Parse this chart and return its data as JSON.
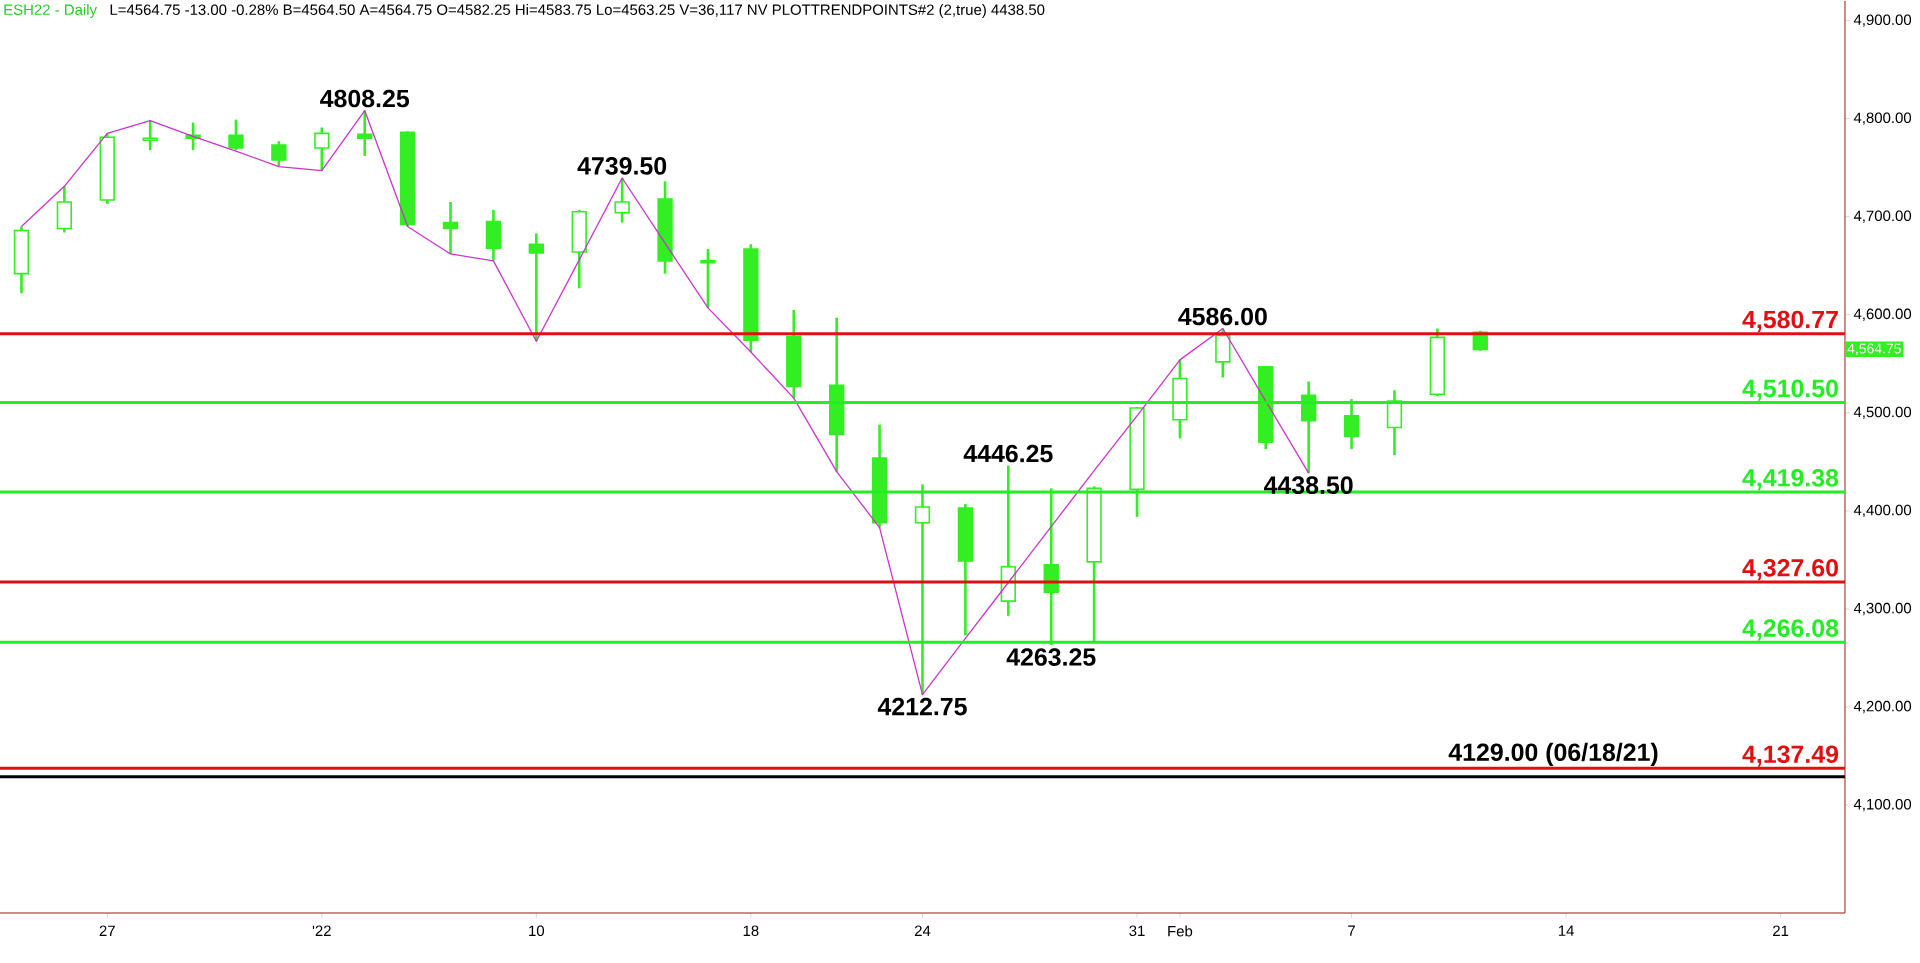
{
  "chart_data": {
    "type": "candlestick",
    "title": "ESH22 - Daily",
    "subtitle": "L=4564.75 -13.00 -0.28%  B=4564.50  A=4564.75  O=4582.25  Hi=4583.75  Lo=4563.25  V=36,117  NV  PLOTTRENDPOINTS#2 (2,true)  4438.50",
    "color": "#33ee22",
    "categories": [
      null,
      null,
      "27",
      null,
      null,
      null,
      null,
      "'22",
      null,
      null,
      null,
      null,
      "10",
      null,
      null,
      null,
      null,
      "18",
      null,
      null,
      null,
      "24",
      null,
      null,
      null,
      null,
      "31",
      "Feb",
      null,
      null,
      null,
      "7",
      null,
      null,
      null,
      null,
      "14",
      null,
      null,
      null,
      null,
      "21",
      null
    ],
    "ohlc": [
      [
        4642,
        4690,
        4622,
        4686
      ],
      [
        4688,
        4731,
        4684,
        4715
      ],
      [
        4717,
        4785,
        4713,
        4781
      ],
      [
        4778,
        4798,
        4768,
        4780
      ],
      [
        4783,
        4796,
        4768,
        4780
      ],
      [
        4783,
        4799,
        4768,
        4770
      ],
      [
        4773,
        4777,
        4751,
        4758
      ],
      [
        4770,
        4791,
        4747,
        4785
      ],
      [
        4784,
        4808.25,
        4762,
        4780
      ],
      [
        4786,
        4787,
        4690,
        4692
      ],
      [
        4694,
        4715,
        4662,
        4688
      ],
      [
        4695,
        4707,
        4655,
        4668
      ],
      [
        4672,
        4683,
        4573,
        4663
      ],
      [
        4664,
        4707,
        4627,
        4705
      ],
      [
        4704,
        4739.5,
        4694,
        4715
      ],
      [
        4718,
        4736,
        4642,
        4655
      ],
      [
        4655,
        4667,
        4607,
        4653
      ],
      [
        4667,
        4672,
        4562,
        4574
      ],
      [
        4578,
        4605,
        4515,
        4527
      ],
      [
        4528,
        4597,
        4440,
        4478
      ],
      [
        4454,
        4488,
        4383,
        4388
      ],
      [
        4388,
        4427,
        4212.75,
        4404
      ],
      [
        4403,
        4407,
        4273,
        4349
      ],
      [
        4308,
        4446.25,
        4293,
        4343
      ],
      [
        4345,
        4423,
        4263.25,
        4317
      ],
      [
        4348,
        4425,
        4267,
        4423
      ],
      [
        4422,
        4506,
        4394,
        4505
      ],
      [
        4493,
        4554,
        4474,
        4535
      ],
      [
        4552,
        4586,
        4536,
        4579
      ],
      [
        4547,
        4547,
        4463,
        4470
      ],
      [
        4518,
        4532,
        4438.5,
        4492
      ],
      [
        4497,
        4514,
        4463,
        4476
      ],
      [
        4485,
        4523,
        4457,
        4512
      ],
      [
        4519,
        4586,
        4517,
        4577
      ],
      [
        4582.25,
        4583.75,
        4563.25,
        4564.75
      ],
      null,
      null,
      null,
      null,
      null,
      null,
      null,
      null
    ],
    "series": [
      {
        "type": "line",
        "color": "#cc33cc",
        "values": [
          4690,
          4731,
          4785,
          4798,
          4782,
          4767,
          4751,
          4747,
          4808.25,
          4690,
          4662,
          4655,
          4573,
          4656,
          4739.5,
          4673,
          4607,
          4562,
          4515,
          4440,
          4383,
          4212.75,
          4270,
          4327,
          4384,
          4441,
          4497,
          4554,
          4586,
          4512,
          4438.5,
          null,
          null,
          null,
          null,
          null,
          null,
          null,
          null,
          null,
          null,
          null,
          null
        ]
      }
    ],
    "ylim": [
      3990,
      4920
    ],
    "yticks": [
      {
        "value": 4100,
        "label": "4,100.00"
      },
      {
        "value": 4200,
        "label": "4,200.00"
      },
      {
        "value": 4300,
        "label": "4,300.00"
      },
      {
        "value": 4400,
        "label": "4,400.00"
      },
      {
        "value": 4500,
        "label": "4,500.00"
      },
      {
        "value": 4600,
        "label": "4,600.00"
      },
      {
        "value": 4700,
        "label": "4,700.00"
      },
      {
        "value": 4800,
        "label": "4,800.00"
      },
      {
        "value": 4900,
        "label": "4,900.00"
      }
    ],
    "ref_lines": [
      {
        "axis": "y",
        "value": 4580.77,
        "label": "4,580.77",
        "color": "#e01010"
      },
      {
        "axis": "y",
        "value": 4510.5,
        "label": "4,510.50",
        "color": "#22ee22"
      },
      {
        "axis": "y",
        "value": 4419.38,
        "label": "4,419.38",
        "color": "#22ee22"
      },
      {
        "axis": "y",
        "value": 4327.6,
        "label": "4,327.60",
        "color": "#e01010"
      },
      {
        "axis": "y",
        "value": 4266.08,
        "label": "4,266.08",
        "color": "#22ee22"
      },
      {
        "axis": "y",
        "value": 4137.49,
        "label": "4,137.49",
        "color": "#e01010"
      },
      {
        "axis": "y",
        "value": 4129,
        "label": "4129.00 (06/18/21)",
        "color": "#000000"
      }
    ],
    "annotations": [
      {
        "text": "4808.25",
        "y": 4808.25
      },
      {
        "text": "4739.50",
        "y": 4739.5
      },
      {
        "text": "4586.00",
        "y": 4586
      },
      {
        "text": "4446.25",
        "y": 4446.25
      },
      {
        "text": "4438.50",
        "y": 4438.5
      },
      {
        "text": "4263.25",
        "y": 4263.25
      },
      {
        "text": "4212.75",
        "y": 4212.75
      },
      "4,564.75"
    ]
  }
}
